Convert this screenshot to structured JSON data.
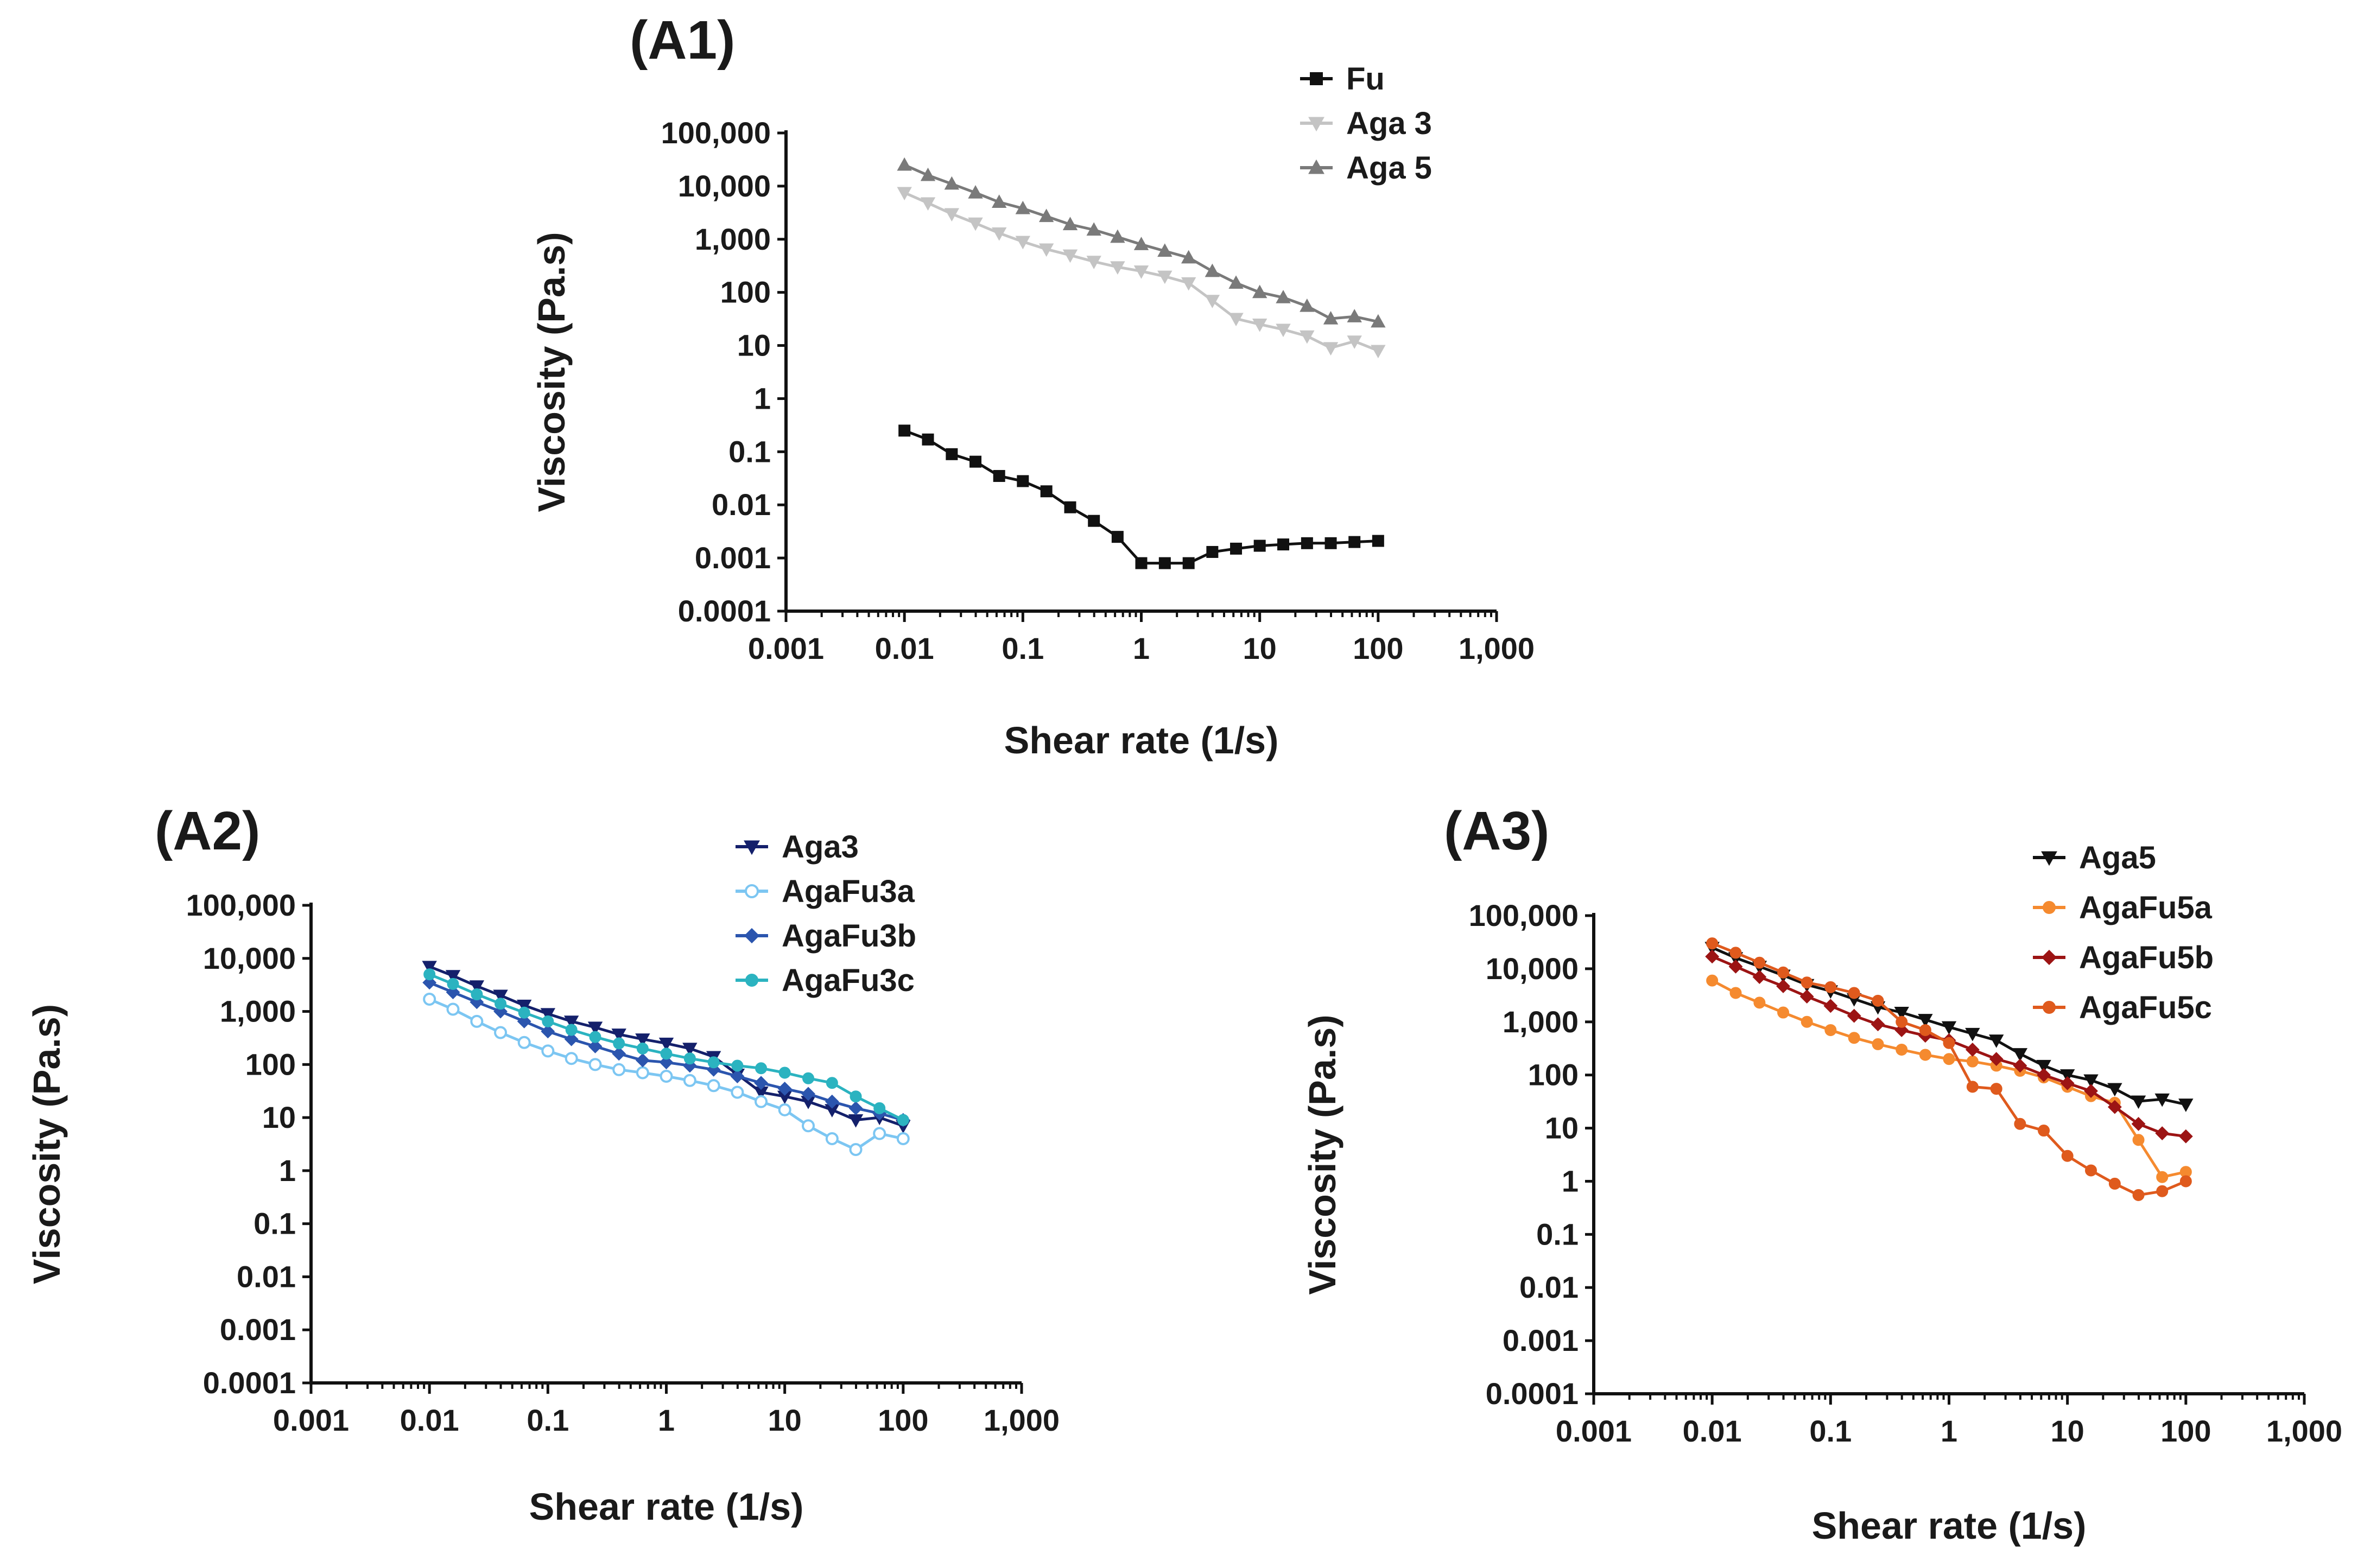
{
  "chart_data": [
    {
      "id": "A1",
      "type": "line",
      "panel_label": "(A1)",
      "xlabel": "Shear rate (1/s)",
      "ylabel": "Viscosity (Pa.s)",
      "xscale": "log",
      "yscale": "log",
      "xlim": [
        0.001,
        1000
      ],
      "ylim": [
        0.0001,
        100000
      ],
      "x_ticks": [
        "0.001",
        "0.01",
        "0.1",
        "1",
        "10",
        "100",
        "1,000"
      ],
      "y_ticks": [
        "0.0001",
        "0.001",
        "0.01",
        "0.1",
        "1",
        "10",
        "100",
        "1,000",
        "10,000",
        "100,000"
      ],
      "legend_position": "top-right",
      "x": [
        0.01,
        0.0158,
        0.0251,
        0.0398,
        0.0631,
        0.1,
        0.158,
        0.251,
        0.398,
        0.631,
        1,
        1.58,
        2.51,
        3.98,
        6.31,
        10,
        15.8,
        25.1,
        39.8,
        63.1,
        100
      ],
      "series": [
        {
          "name": "Fu",
          "color": "#111111",
          "marker": "square",
          "filled": true,
          "values": [
            0.25,
            0.17,
            0.09,
            0.065,
            0.035,
            0.028,
            0.018,
            0.009,
            0.005,
            0.0025,
            0.0008,
            0.0008,
            0.0008,
            0.0013,
            0.0015,
            0.0017,
            0.0018,
            0.0019,
            0.0019,
            0.002,
            0.0021
          ]
        },
        {
          "name": "Aga 3",
          "color": "#c4c4c4",
          "marker": "triangle-down",
          "filled": true,
          "values": [
            7500,
            4800,
            3000,
            2000,
            1300,
            900,
            650,
            500,
            380,
            300,
            250,
            200,
            150,
            70,
            32,
            25,
            20,
            15,
            9,
            12,
            8
          ]
        },
        {
          "name": "Aga 5",
          "color": "#7a7a7a",
          "marker": "triangle-up",
          "filled": true,
          "values": [
            25000,
            16000,
            11000,
            7500,
            5000,
            3800,
            2700,
            1900,
            1500,
            1100,
            800,
            600,
            450,
            250,
            150,
            100,
            80,
            55,
            32,
            35,
            28
          ]
        }
      ]
    },
    {
      "id": "A2",
      "type": "line",
      "panel_label": "(A2)",
      "xlabel": "Shear rate (1/s)",
      "ylabel": "Viscosity (Pa.s)",
      "xscale": "log",
      "yscale": "log",
      "xlim": [
        0.001,
        1000
      ],
      "ylim": [
        0.0001,
        100000
      ],
      "x_ticks": [
        "0.001",
        "0.01",
        "0.1",
        "1",
        "10",
        "100",
        "1,000"
      ],
      "y_ticks": [
        "0.0001",
        "0.001",
        "0.01",
        "0.1",
        "1",
        "10",
        "100",
        "1,000",
        "10,000",
        "100,000"
      ],
      "legend_position": "top-right",
      "x": [
        0.01,
        0.0158,
        0.0251,
        0.0398,
        0.0631,
        0.1,
        0.158,
        0.251,
        0.398,
        0.631,
        1,
        1.58,
        2.51,
        3.98,
        6.31,
        10,
        15.8,
        25.1,
        39.8,
        63.1,
        100
      ],
      "series": [
        {
          "name": "Aga3",
          "color": "#14206b",
          "marker": "triangle-down",
          "filled": true,
          "values": [
            7000,
            4700,
            3000,
            2000,
            1300,
            900,
            650,
            500,
            370,
            300,
            250,
            200,
            140,
            65,
            30,
            25,
            20,
            14,
            9,
            10,
            7
          ]
        },
        {
          "name": "AgaFu3a",
          "color": "#7cc6f2",
          "marker": "circle",
          "filled": false,
          "values": [
            1700,
            1100,
            650,
            400,
            260,
            180,
            130,
            100,
            80,
            70,
            60,
            50,
            40,
            30,
            20,
            14,
            7,
            4,
            2.5,
            5,
            4
          ]
        },
        {
          "name": "AgaFu3b",
          "color": "#2b55ae",
          "marker": "diamond",
          "filled": true,
          "values": [
            3500,
            2300,
            1500,
            1000,
            650,
            420,
            300,
            220,
            160,
            120,
            110,
            95,
            80,
            60,
            45,
            35,
            28,
            20,
            15,
            12,
            9
          ]
        },
        {
          "name": "AgaFu3c",
          "color": "#2bb3c0",
          "marker": "circle",
          "filled": true,
          "values": [
            5000,
            3300,
            2100,
            1400,
            950,
            650,
            450,
            330,
            250,
            200,
            160,
            130,
            110,
            95,
            85,
            70,
            55,
            45,
            25,
            15,
            9
          ]
        }
      ]
    },
    {
      "id": "A3",
      "type": "line",
      "panel_label": "(A3)",
      "xlabel": "Shear rate (1/s)",
      "ylabel": "Viscosity (Pa.s)",
      "xscale": "log",
      "yscale": "log",
      "xlim": [
        0.001,
        1000
      ],
      "ylim": [
        0.0001,
        100000
      ],
      "x_ticks": [
        "0.001",
        "0.01",
        "0.1",
        "1",
        "10",
        "100",
        "1,000"
      ],
      "y_ticks": [
        "0.0001",
        "0.001",
        "0.01",
        "0.1",
        "1",
        "10",
        "100",
        "1,000",
        "10,000",
        "100,000"
      ],
      "legend_position": "top-right",
      "x": [
        0.01,
        0.0158,
        0.0251,
        0.0398,
        0.0631,
        0.1,
        0.158,
        0.251,
        0.398,
        0.631,
        1,
        1.58,
        2.51,
        3.98,
        6.31,
        10,
        15.8,
        25.1,
        39.8,
        63.1,
        100
      ],
      "series": [
        {
          "name": "Aga5",
          "color": "#111111",
          "marker": "triangle-down",
          "filled": true,
          "values": [
            25000,
            16000,
            11000,
            7500,
            5000,
            3800,
            2700,
            1900,
            1500,
            1100,
            800,
            600,
            450,
            250,
            150,
            100,
            80,
            55,
            32,
            35,
            28
          ]
        },
        {
          "name": "AgaFu5a",
          "color": "#f58a2f",
          "marker": "circle",
          "filled": true,
          "values": [
            6000,
            3500,
            2300,
            1500,
            1000,
            700,
            500,
            380,
            300,
            240,
            200,
            180,
            150,
            120,
            90,
            60,
            40,
            30,
            6,
            1.2,
            1.5
          ]
        },
        {
          "name": "AgaFu5b",
          "color": "#9c1414",
          "marker": "diamond",
          "filled": true,
          "values": [
            17000,
            11000,
            7000,
            4700,
            3000,
            2000,
            1300,
            900,
            700,
            550,
            450,
            300,
            200,
            150,
            100,
            70,
            50,
            25,
            12,
            8,
            7
          ]
        },
        {
          "name": "AgaFu5c",
          "color": "#df5a1d",
          "marker": "circle",
          "filled": true,
          "values": [
            30000,
            20000,
            13000,
            8500,
            5500,
            4500,
            3500,
            2500,
            1000,
            700,
            400,
            60,
            55,
            12,
            9,
            3,
            1.6,
            0.9,
            0.55,
            0.65,
            1
          ]
        }
      ]
    }
  ]
}
